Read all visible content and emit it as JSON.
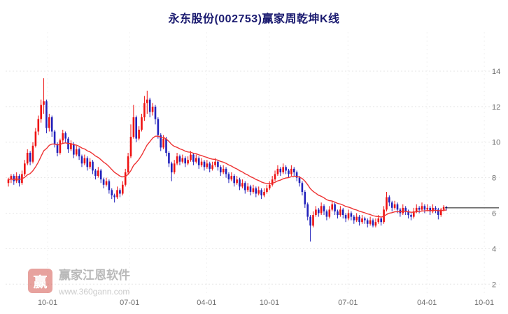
{
  "colors": {
    "up": "#ee1111",
    "down": "#2222bb",
    "ma": "#ee3333",
    "last_price_line": "#111111",
    "grid_h": "#e6e6e6",
    "grid_v": "#f1f1f1",
    "axis_text": "#707070",
    "title": "#1b1b70"
  },
  "watermark": {
    "logo_text": "赢",
    "brand": "赢家江恩软件",
    "url": "www.360gann.com"
  },
  "chart_data": {
    "type": "candlestick",
    "title": "永东股份(002753)赢家周乾坤K线",
    "xlabel": "",
    "ylabel": "",
    "ylim": [
      1.5,
      16.2
    ],
    "yticks": [
      2,
      4,
      6,
      8,
      10,
      12,
      14
    ],
    "grid": "dotted-horizontal",
    "legend": "none",
    "xticks": [
      {
        "label": "10-01",
        "pos": 0.085
      },
      {
        "label": "07-01",
        "pos": 0.251
      },
      {
        "label": "04-01",
        "pos": 0.407
      },
      {
        "label": "10-01",
        "pos": 0.534
      },
      {
        "label": "07-01",
        "pos": 0.693
      },
      {
        "label": "04-01",
        "pos": 0.853
      },
      {
        "label": "10-01",
        "pos": 0.969
      }
    ],
    "overlays": [
      {
        "name": "smoothed-ma-line",
        "style": "ema",
        "alpha": 0.1
      },
      {
        "name": "last-price-line",
        "price": 6.3
      }
    ],
    "flat_line": {
      "price": 6.3
    },
    "candles": [
      [
        7.7,
        8.0,
        7.5,
        7.9
      ],
      [
        7.9,
        8.2,
        7.7,
        8.1
      ],
      [
        8.1,
        8.2,
        7.6,
        7.8
      ],
      [
        7.8,
        8.3,
        7.7,
        8.1
      ],
      [
        8.1,
        8.2,
        7.5,
        7.7
      ],
      [
        7.7,
        8.4,
        7.6,
        8.2
      ],
      [
        8.2,
        9.0,
        8.1,
        8.8
      ],
      [
        8.8,
        9.6,
        8.7,
        9.4
      ],
      [
        9.4,
        9.5,
        8.7,
        8.9
      ],
      [
        8.9,
        10.0,
        8.8,
        9.8
      ],
      [
        9.8,
        10.8,
        9.7,
        10.6
      ],
      [
        10.6,
        11.5,
        10.4,
        11.3
      ],
      [
        11.3,
        12.4,
        11.1,
        12.1
      ],
      [
        12.1,
        13.6,
        11.6,
        12.3
      ],
      [
        12.3,
        12.4,
        10.5,
        10.8
      ],
      [
        10.8,
        11.6,
        10.6,
        11.4
      ],
      [
        11.4,
        11.5,
        10.3,
        10.6
      ],
      [
        10.6,
        10.7,
        9.7,
        9.9
      ],
      [
        9.9,
        10.0,
        9.2,
        9.4
      ],
      [
        9.4,
        10.2,
        9.3,
        10.1
      ],
      [
        10.1,
        10.7,
        9.9,
        10.5
      ],
      [
        10.5,
        10.6,
        10.0,
        10.2
      ],
      [
        10.2,
        10.3,
        9.4,
        9.6
      ],
      [
        9.6,
        10.1,
        9.5,
        9.9
      ],
      [
        9.9,
        10.0,
        9.1,
        9.3
      ],
      [
        9.3,
        9.8,
        9.2,
        9.6
      ],
      [
        9.6,
        9.7,
        9.0,
        9.2
      ],
      [
        9.2,
        9.3,
        8.6,
        8.8
      ],
      [
        8.8,
        9.3,
        8.7,
        9.1
      ],
      [
        9.1,
        9.2,
        8.4,
        8.6
      ],
      [
        8.6,
        9.1,
        8.5,
        8.9
      ],
      [
        8.9,
        9.0,
        8.2,
        8.4
      ],
      [
        8.4,
        8.5,
        7.9,
        8.1
      ],
      [
        8.1,
        8.6,
        8.0,
        8.4
      ],
      [
        8.4,
        8.5,
        7.7,
        7.9
      ],
      [
        7.9,
        8.0,
        7.4,
        7.6
      ],
      [
        7.6,
        8.0,
        7.5,
        7.8
      ],
      [
        7.8,
        7.9,
        7.1,
        7.3
      ],
      [
        7.3,
        7.4,
        6.8,
        7.0
      ],
      [
        7.0,
        7.1,
        6.6,
        6.9
      ],
      [
        6.9,
        7.5,
        6.8,
        7.3
      ],
      [
        7.3,
        7.4,
        6.9,
        7.1
      ],
      [
        7.1,
        7.8,
        7.0,
        7.6
      ],
      [
        7.6,
        8.5,
        7.5,
        8.3
      ],
      [
        8.3,
        9.4,
        8.2,
        9.2
      ],
      [
        9.2,
        11.0,
        9.1,
        10.3
      ],
      [
        10.3,
        12.1,
        10.2,
        11.4
      ],
      [
        11.4,
        11.5,
        10.0,
        10.2
      ],
      [
        10.2,
        10.9,
        10.1,
        10.7
      ],
      [
        10.7,
        11.6,
        10.6,
        11.4
      ],
      [
        11.4,
        12.6,
        11.2,
        12.2
      ],
      [
        12.2,
        12.9,
        11.6,
        12.4
      ],
      [
        12.4,
        12.5,
        11.4,
        11.7
      ],
      [
        11.7,
        12.2,
        11.5,
        12.0
      ],
      [
        12.0,
        12.1,
        11.0,
        11.3
      ],
      [
        11.3,
        11.4,
        10.2,
        10.4
      ],
      [
        10.4,
        10.5,
        9.5,
        9.7
      ],
      [
        9.7,
        10.4,
        9.6,
        10.2
      ],
      [
        10.2,
        10.3,
        9.2,
        9.4
      ],
      [
        9.4,
        9.5,
        8.6,
        8.8
      ],
      [
        8.8,
        8.9,
        7.8,
        8.3
      ],
      [
        8.3,
        9.0,
        8.2,
        8.8
      ],
      [
        8.8,
        9.4,
        8.7,
        9.2
      ],
      [
        9.2,
        9.3,
        8.7,
        8.9
      ],
      [
        8.9,
        9.3,
        8.8,
        9.1
      ],
      [
        9.1,
        9.2,
        8.6,
        8.8
      ],
      [
        8.8,
        9.2,
        8.7,
        9.0
      ],
      [
        9.0,
        9.5,
        8.9,
        9.3
      ],
      [
        9.3,
        9.4,
        8.7,
        8.9
      ],
      [
        8.9,
        9.3,
        8.8,
        9.1
      ],
      [
        9.1,
        9.2,
        8.5,
        8.7
      ],
      [
        8.7,
        9.1,
        8.6,
        8.9
      ],
      [
        8.9,
        9.0,
        8.4,
        8.6
      ],
      [
        8.6,
        9.0,
        8.5,
        8.8
      ],
      [
        8.8,
        8.9,
        8.3,
        8.5
      ],
      [
        8.5,
        8.9,
        8.4,
        8.7
      ],
      [
        8.7,
        9.1,
        8.6,
        8.9
      ],
      [
        8.9,
        9.0,
        8.4,
        8.6
      ],
      [
        8.6,
        8.7,
        8.1,
        8.3
      ],
      [
        8.3,
        8.7,
        8.2,
        8.5
      ],
      [
        8.5,
        8.6,
        8.0,
        8.2
      ],
      [
        8.2,
        8.3,
        7.7,
        7.9
      ],
      [
        7.9,
        8.3,
        7.8,
        8.1
      ],
      [
        8.1,
        8.2,
        7.5,
        7.7
      ],
      [
        7.7,
        8.1,
        7.6,
        7.9
      ],
      [
        7.9,
        8.0,
        7.3,
        7.5
      ],
      [
        7.5,
        7.9,
        7.4,
        7.7
      ],
      [
        7.7,
        7.8,
        7.1,
        7.3
      ],
      [
        7.3,
        7.7,
        7.2,
        7.5
      ],
      [
        7.5,
        7.6,
        7.0,
        7.2
      ],
      [
        7.2,
        7.6,
        7.1,
        7.4
      ],
      [
        7.4,
        7.5,
        6.9,
        7.1
      ],
      [
        7.1,
        7.5,
        7.0,
        7.3
      ],
      [
        7.3,
        7.4,
        6.8,
        7.0
      ],
      [
        7.0,
        7.4,
        6.9,
        7.2
      ],
      [
        7.2,
        7.6,
        7.1,
        7.4
      ],
      [
        7.4,
        7.8,
        7.3,
        7.6
      ],
      [
        7.6,
        8.1,
        7.5,
        7.9
      ],
      [
        7.9,
        8.4,
        7.8,
        8.2
      ],
      [
        8.2,
        8.7,
        8.1,
        8.5
      ],
      [
        8.5,
        8.6,
        8.1,
        8.3
      ],
      [
        8.3,
        8.8,
        8.2,
        8.6
      ],
      [
        8.6,
        8.7,
        8.2,
        8.4
      ],
      [
        8.4,
        8.5,
        8.0,
        8.2
      ],
      [
        8.2,
        8.7,
        8.1,
        8.5
      ],
      [
        8.5,
        8.6,
        8.1,
        8.3
      ],
      [
        8.3,
        8.4,
        7.8,
        8.0
      ],
      [
        8.0,
        8.1,
        7.5,
        7.7
      ],
      [
        7.7,
        7.8,
        7.0,
        7.2
      ],
      [
        7.2,
        7.3,
        6.3,
        6.5
      ],
      [
        6.5,
        6.6,
        5.6,
        5.8
      ],
      [
        5.8,
        5.9,
        4.4,
        5.3
      ],
      [
        5.3,
        6.1,
        5.2,
        5.9
      ],
      [
        5.9,
        6.4,
        5.8,
        6.2
      ],
      [
        6.2,
        6.3,
        5.8,
        6.0
      ],
      [
        6.0,
        6.6,
        5.9,
        6.4
      ],
      [
        6.4,
        6.5,
        5.9,
        6.1
      ],
      [
        6.1,
        6.2,
        5.6,
        5.8
      ],
      [
        5.8,
        6.4,
        5.7,
        6.2
      ],
      [
        6.2,
        6.7,
        6.1,
        6.5
      ],
      [
        6.5,
        6.6,
        5.9,
        6.1
      ],
      [
        6.1,
        6.2,
        5.7,
        5.9
      ],
      [
        5.9,
        6.4,
        5.8,
        6.2
      ],
      [
        6.2,
        6.3,
        5.7,
        5.9
      ],
      [
        5.9,
        6.0,
        5.5,
        5.7
      ],
      [
        5.7,
        6.2,
        5.6,
        6.0
      ],
      [
        6.0,
        6.1,
        5.6,
        5.8
      ],
      [
        5.8,
        5.9,
        5.4,
        5.6
      ],
      [
        5.6,
        6.0,
        5.5,
        5.8
      ],
      [
        5.8,
        5.9,
        5.3,
        5.5
      ],
      [
        5.5,
        5.9,
        5.4,
        5.7
      ],
      [
        5.7,
        5.8,
        5.4,
        5.6
      ],
      [
        5.6,
        5.7,
        5.2,
        5.4
      ],
      [
        5.4,
        5.8,
        5.3,
        5.6
      ],
      [
        5.6,
        5.7,
        5.2,
        5.3
      ],
      [
        5.3,
        5.7,
        5.2,
        5.5
      ],
      [
        5.5,
        5.9,
        5.4,
        5.7
      ],
      [
        5.7,
        5.8,
        5.3,
        5.5
      ],
      [
        5.5,
        6.4,
        5.4,
        6.2
      ],
      [
        6.2,
        7.2,
        6.1,
        6.9
      ],
      [
        6.9,
        7.0,
        6.4,
        6.6
      ],
      [
        6.6,
        6.7,
        6.1,
        6.3
      ],
      [
        6.3,
        6.7,
        6.2,
        6.5
      ],
      [
        6.5,
        6.6,
        6.0,
        6.2
      ],
      [
        6.2,
        6.3,
        5.8,
        6.0
      ],
      [
        6.0,
        6.5,
        5.9,
        6.3
      ],
      [
        6.3,
        6.4,
        5.9,
        6.1
      ],
      [
        6.1,
        6.2,
        5.7,
        5.9
      ],
      [
        5.9,
        6.0,
        5.6,
        5.8
      ],
      [
        5.8,
        6.3,
        5.7,
        6.1
      ],
      [
        6.1,
        6.5,
        6.0,
        6.3
      ],
      [
        6.3,
        6.4,
        6.0,
        6.2
      ],
      [
        6.2,
        6.6,
        6.1,
        6.4
      ],
      [
        6.4,
        6.5,
        6.0,
        6.2
      ],
      [
        6.2,
        6.5,
        6.1,
        6.3
      ],
      [
        6.3,
        6.4,
        5.9,
        6.1
      ],
      [
        6.1,
        6.5,
        6.0,
        6.3
      ],
      [
        6.3,
        6.4,
        6.0,
        6.2
      ],
      [
        6.2,
        6.3,
        5.65,
        5.9
      ],
      [
        5.9,
        6.3,
        5.8,
        6.2
      ],
      [
        6.2,
        6.45,
        6.1,
        6.35
      ],
      [
        6.35,
        6.4,
        6.15,
        6.3
      ]
    ]
  }
}
